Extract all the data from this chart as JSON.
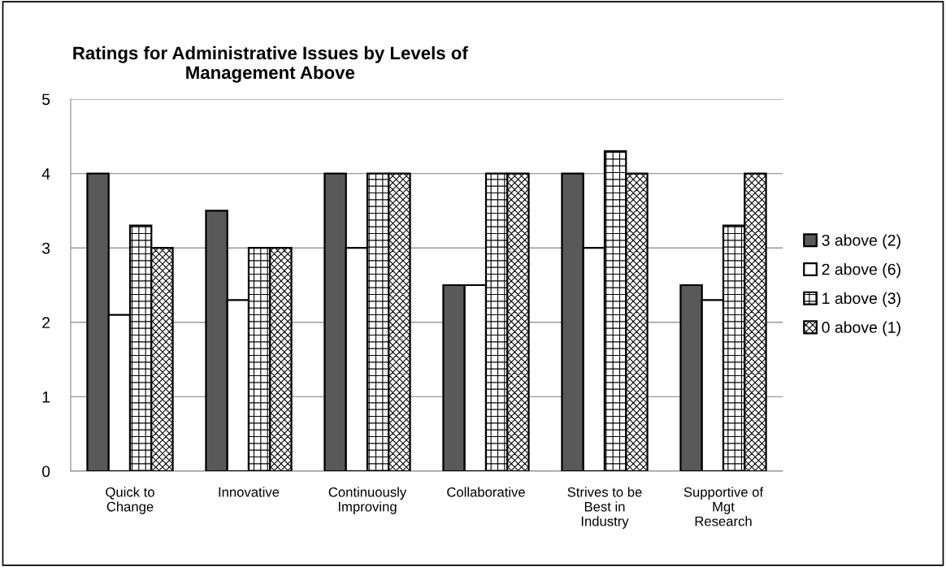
{
  "chart_data": {
    "type": "bar",
    "title": "Ratings for Administrative Issues by Levels of\nManagement Above",
    "categories": [
      "Quick to\nChange",
      "Innovative",
      "Continuously\nImproving",
      "Collaborative",
      "Strives to be\nBest in\nIndustry",
      "Supportive of\nMgt\nResearch"
    ],
    "series": [
      {
        "name": "3 above (2)",
        "color": "#595959",
        "values": [
          4,
          3.5,
          4,
          2.5,
          4,
          2.5
        ]
      },
      {
        "name": "2 above (6)",
        "color": "#ffffff",
        "values": [
          2.1,
          2.3,
          3,
          2.5,
          3,
          2.3
        ]
      },
      {
        "name": "1 above (3)",
        "color": "#000000",
        "values": [
          3.3,
          3,
          4,
          4,
          4.3,
          3.3
        ]
      },
      {
        "name": "0 above (1)",
        "color": "#000000",
        "values": [
          3,
          3,
          4,
          4,
          4,
          4
        ]
      }
    ],
    "ylim": [
      0,
      5
    ],
    "yticks": [
      0,
      1,
      2,
      3,
      4,
      5
    ],
    "grid": "y",
    "legend": "right"
  }
}
